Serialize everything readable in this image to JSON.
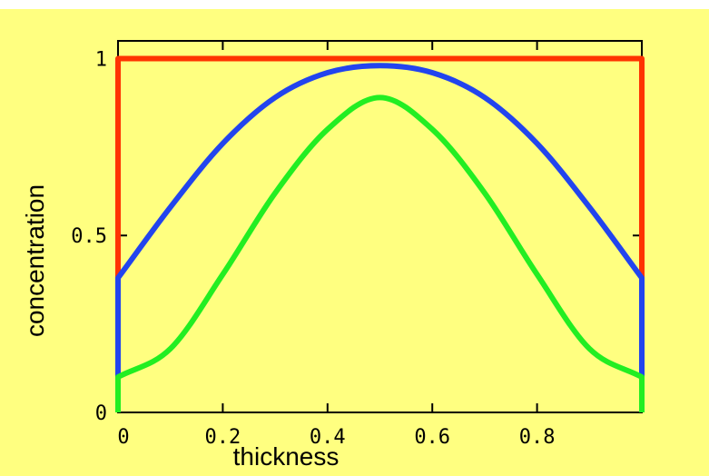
{
  "chart_data": {
    "type": "line",
    "title": "",
    "xlabel": "thickness",
    "ylabel": "concentration",
    "xlim": [
      0,
      1
    ],
    "ylim": [
      0,
      1.05
    ],
    "x_ticks": [
      0,
      0.2,
      0.4,
      0.6,
      0.8
    ],
    "x_tick_labels": [
      "0",
      "0.2",
      "0.4",
      "0.6",
      "0.8"
    ],
    "y_ticks": [
      0,
      0.5,
      1
    ],
    "y_tick_labels": [
      "0",
      "0.5",
      "1"
    ],
    "grid": false,
    "legend": "none",
    "colors": {
      "background": "#ffff80",
      "red": "#ff3300",
      "blue": "#2244ee",
      "green": "#22ee22"
    },
    "series": [
      {
        "color": "red",
        "x": [
          0,
          0,
          0.5,
          1,
          1
        ],
        "y": [
          0,
          1,
          1,
          1,
          0
        ]
      },
      {
        "color": "blue",
        "x": [
          0,
          0,
          0.1,
          0.2,
          0.3,
          0.4,
          0.5,
          0.6,
          0.7,
          0.8,
          0.9,
          1,
          1
        ],
        "y": [
          0.1,
          0.38,
          0.58,
          0.76,
          0.89,
          0.96,
          0.98,
          0.96,
          0.89,
          0.76,
          0.58,
          0.38,
          0.1
        ]
      },
      {
        "color": "green",
        "x": [
          0,
          0,
          0.1,
          0.2,
          0.3,
          0.4,
          0.5,
          0.6,
          0.7,
          0.8,
          0.9,
          1,
          1
        ],
        "y": [
          0,
          0.1,
          0.18,
          0.39,
          0.62,
          0.8,
          0.89,
          0.8,
          0.62,
          0.39,
          0.18,
          0.1,
          0
        ]
      }
    ]
  }
}
